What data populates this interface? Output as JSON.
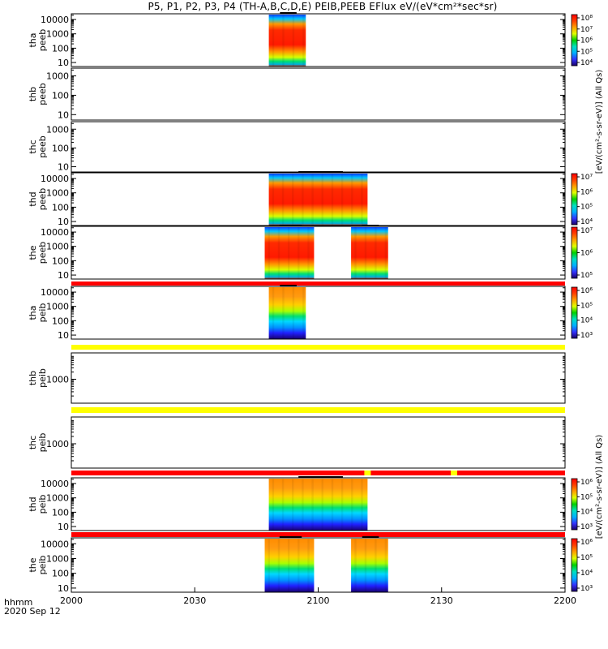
{
  "title": "P5, P1, P2, P3, P4 (TH-A,B,C,D,E) PEIB,PEEB EFlux eV/(eV*cm²*sec*sr)",
  "time_axis": {
    "name": "hhmm",
    "date": "2020 Sep 12",
    "ticks": [
      "2000",
      "2030",
      "2100",
      "2130",
      "2200"
    ]
  },
  "colorbar_labels": {
    "electron": "[eV/(cm²-s-sr-eV)] (All Qs)",
    "ion": "[eV/(cm²-s-sr-eV)] (All Qs)"
  },
  "colors": {
    "flag_red": "#ff0000",
    "flag_yellow": "#ffff00",
    "frame": "#000000"
  },
  "chart_data": {
    "type": "heatmap",
    "x_unit": "hhmm",
    "x_range": [
      "20:00",
      "22:00"
    ],
    "colormap": "rainbow",
    "panels": [
      {
        "probe": "tha",
        "product": "peeb",
        "label": "tha\npeeb",
        "y_scale": "log",
        "yticks": [
          "10",
          "100",
          "1000",
          "10000"
        ],
        "cbar_scale": "log",
        "cbar_ticks": [
          "10⁴",
          "10⁵",
          "10⁶",
          "10⁷",
          "10⁸"
        ],
        "data_intervals": [
          [
            "20:48",
            "20:57"
          ]
        ],
        "flag_bar_before": "none"
      },
      {
        "probe": "thb",
        "product": "peeb",
        "label": "thb\npeeb",
        "y_scale": "log",
        "yticks": [
          "10",
          "100",
          "1000"
        ],
        "cbar_scale": "log",
        "cbar_ticks": [],
        "data_intervals": [],
        "flag_bar_before": "none"
      },
      {
        "probe": "thc",
        "product": "peeb",
        "label": "thc\npeeb",
        "y_scale": "log",
        "yticks": [
          "10",
          "100",
          "1000"
        ],
        "cbar_scale": "log",
        "cbar_ticks": [],
        "data_intervals": [],
        "flag_bar_before": "none"
      },
      {
        "probe": "thd",
        "product": "peeb",
        "label": "thd\npeeb",
        "y_scale": "log",
        "yticks": [
          "10",
          "100",
          "1000",
          "10000"
        ],
        "cbar_scale": "log",
        "cbar_ticks": [
          "10⁴",
          "10⁵",
          "10⁶",
          "10⁷"
        ],
        "data_intervals": [
          [
            "20:48",
            "21:12"
          ]
        ],
        "flag_bar_before": "none"
      },
      {
        "probe": "the",
        "product": "peeb",
        "label": "the\npeeb",
        "y_scale": "log",
        "yticks": [
          "10",
          "100",
          "1000",
          "10000"
        ],
        "cbar_scale": "log",
        "cbar_ticks": [
          "10⁵",
          "10⁶",
          "10⁷"
        ],
        "data_intervals": [
          [
            "20:47",
            "20:59"
          ],
          [
            "21:08",
            "21:17"
          ]
        ],
        "flag_bar_before": "none"
      },
      {
        "probe": "tha",
        "product": "peib",
        "label": "tha\npeib",
        "y_scale": "log",
        "yticks": [
          "10",
          "100",
          "1000",
          "10000"
        ],
        "cbar_scale": "log",
        "cbar_ticks": [
          "10³",
          "10⁴",
          "10⁵",
          "10⁶"
        ],
        "data_intervals": [
          [
            "20:48",
            "20:57"
          ]
        ],
        "flag_bar_before": "red"
      },
      {
        "probe": "thb",
        "product": "peib",
        "label": "thb\npeib",
        "y_scale": "log",
        "yticks": [
          "1000"
        ],
        "cbar_scale": "log",
        "cbar_ticks": [],
        "data_intervals": [],
        "flag_bar_before": "yellow"
      },
      {
        "probe": "thc",
        "product": "peib",
        "label": "thc\npeib",
        "y_scale": "log",
        "yticks": [
          "1000"
        ],
        "cbar_scale": "log",
        "cbar_ticks": [],
        "data_intervals": [],
        "flag_bar_before": "yellow"
      },
      {
        "probe": "thd",
        "product": "peib",
        "label": "thd\npeib",
        "y_scale": "log",
        "yticks": [
          "10",
          "100",
          "1000",
          "10000"
        ],
        "cbar_scale": "log",
        "cbar_ticks": [
          "10³",
          "10⁴",
          "10⁵",
          "10⁶"
        ],
        "data_intervals": [
          [
            "20:48",
            "21:12"
          ]
        ],
        "flag_bar_before": "red"
      },
      {
        "probe": "the",
        "product": "peib",
        "label": "the\npeib",
        "y_scale": "log",
        "yticks": [
          "10",
          "100",
          "1000",
          "10000"
        ],
        "cbar_scale": "log",
        "cbar_ticks": [
          "10³",
          "10⁴",
          "10⁵",
          "10⁶"
        ],
        "data_intervals": [
          [
            "20:47",
            "20:59"
          ],
          [
            "21:08",
            "21:17"
          ]
        ],
        "flag_bar_before": "red"
      }
    ]
  }
}
